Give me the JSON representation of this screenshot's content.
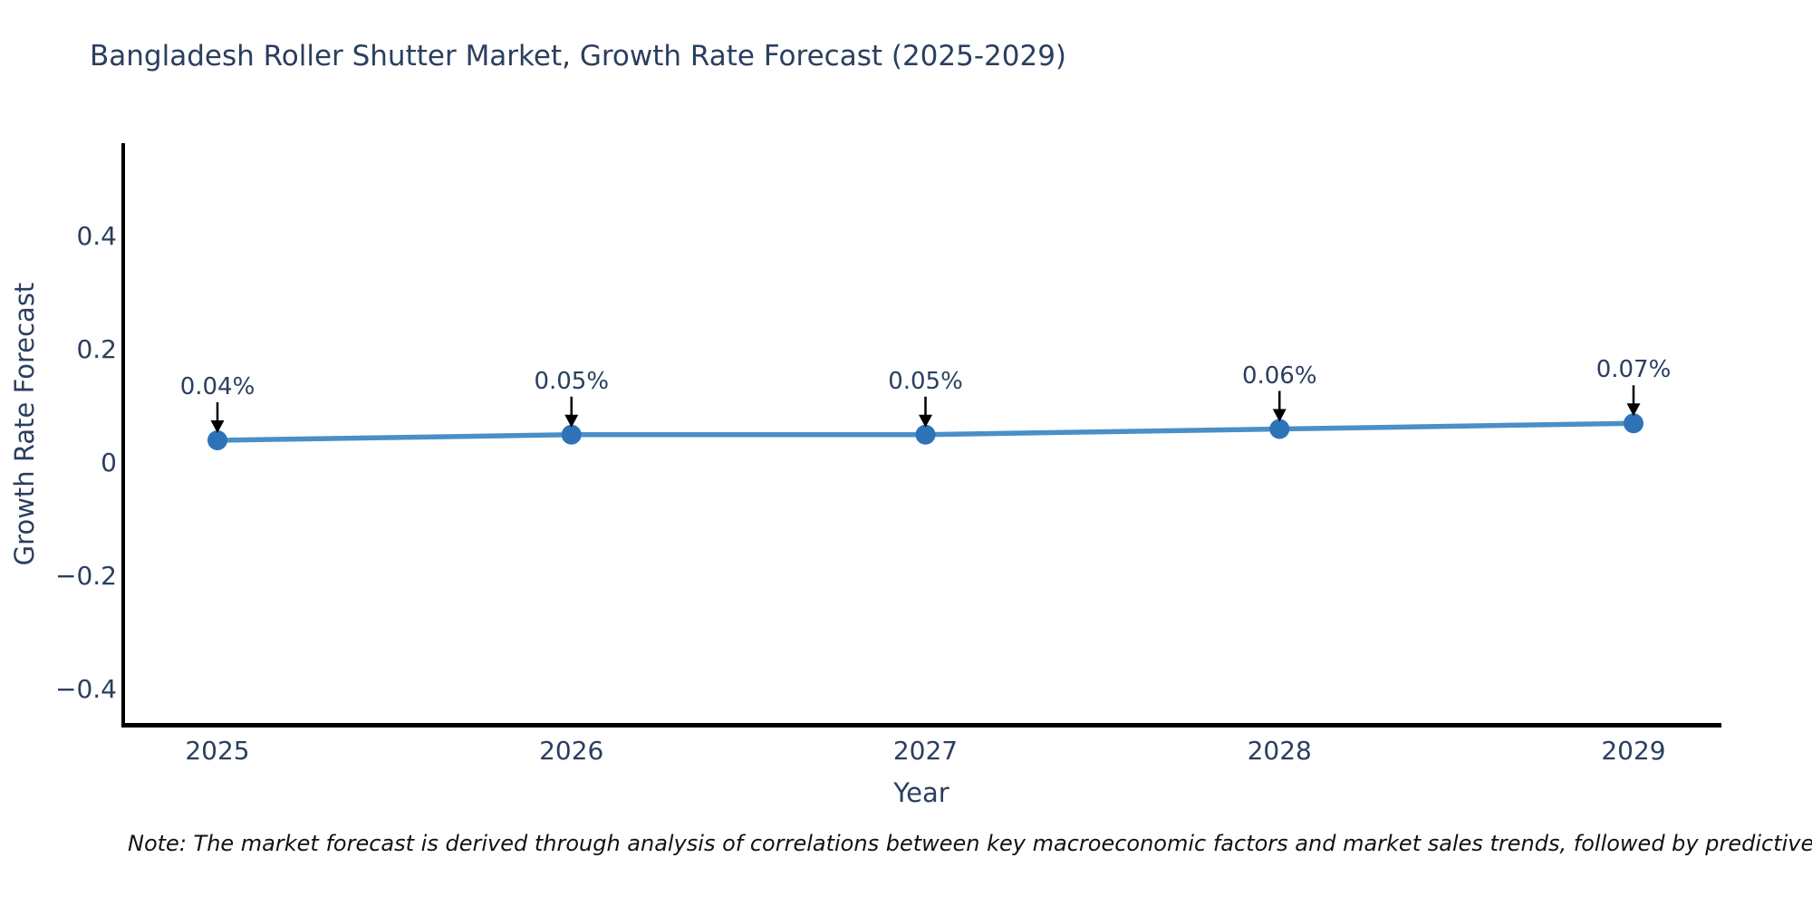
{
  "title": "Bangladesh Roller Shutter Market, Growth Rate Forecast (2025-2029)",
  "note": "Note: The market forecast is derived through analysis of correlations between key macroeconomic factors and market sales trends, followed by predictive modeling to project future sales.",
  "chart_data": {
    "type": "line",
    "title": "Bangladesh Roller Shutter Market, Growth Rate Forecast (2025-2029)",
    "xlabel": "Year",
    "ylabel": "Growth Rate Forecast",
    "x": [
      2025,
      2026,
      2027,
      2028,
      2029
    ],
    "xtick_labels": [
      "2025",
      "2026",
      "2027",
      "2028",
      "2029"
    ],
    "series": [
      {
        "name": "Growth Rate Forecast",
        "values": [
          0.04,
          0.05,
          0.05,
          0.06,
          0.07
        ]
      }
    ],
    "point_labels": [
      "0.04%",
      "0.05%",
      "0.05%",
      "0.06%",
      "0.07%"
    ],
    "yticks": [
      0.4,
      0.2,
      0,
      -0.2,
      -0.4
    ],
    "ytick_labels": [
      "0.4",
      "0.2",
      "0",
      "−0.2",
      "−0.4"
    ],
    "ylim": [
      -0.47,
      0.56
    ],
    "grid": false,
    "legend_visible": false,
    "annotation_arrows": "down-to-point",
    "colors": {
      "line": "#4a8fc7",
      "marker": "#2e73b8",
      "axis_line": "#000000",
      "text": "#2a3f5f",
      "annotation_arrow": "#000000",
      "note_text": "#111111",
      "background": "#ffffff"
    }
  }
}
